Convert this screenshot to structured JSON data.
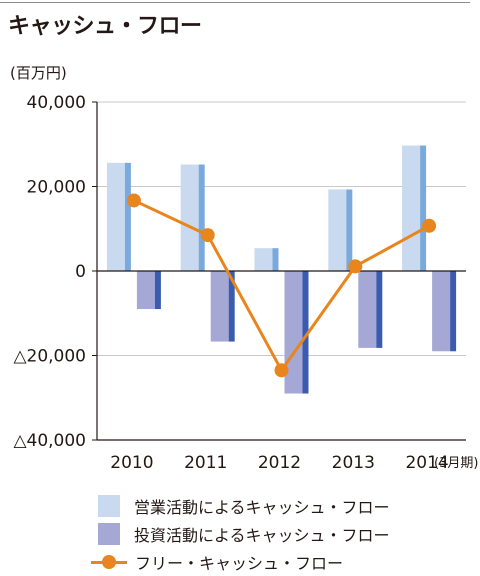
{
  "title": "キャッシュ・フロー",
  "unit_label": "(百万円)",
  "period_label": "(3月期)",
  "colors": {
    "operating_light": "#c9d9ef",
    "operating_dark": "#7aaadc",
    "investing_light": "#a5a8d4",
    "investing_dark": "#3b5cae",
    "free": "#e8851c",
    "grid": "#c8c8c8",
    "axis": "#231815"
  },
  "chart_data": {
    "type": "bar",
    "title": "キャッシュ・フロー",
    "ylabel": "(百万円)",
    "xlabel": "",
    "categories": [
      "2010",
      "2011",
      "2012",
      "2013",
      "2014"
    ],
    "yticks": [
      40000,
      20000,
      0,
      -20000,
      -40000
    ],
    "ytick_labels": [
      "40,000",
      "20,000",
      "0",
      "△20,000",
      "△40,000"
    ],
    "ylim": [
      -40000,
      40000
    ],
    "grid": true,
    "legend_position": "bottom",
    "series": [
      {
        "name": "営業活動によるキャッシュ・フロー",
        "kind": "bar",
        "values": [
          25600,
          25200,
          5400,
          19300,
          29700
        ]
      },
      {
        "name": "投資活動によるキャッシュ・フロー",
        "kind": "bar",
        "values": [
          -9000,
          -16700,
          -29000,
          -18200,
          -19000
        ]
      },
      {
        "name": "フリー・キャッシュ・フロー",
        "kind": "line",
        "values": [
          16700,
          8500,
          -23500,
          1100,
          10700
        ]
      }
    ]
  }
}
